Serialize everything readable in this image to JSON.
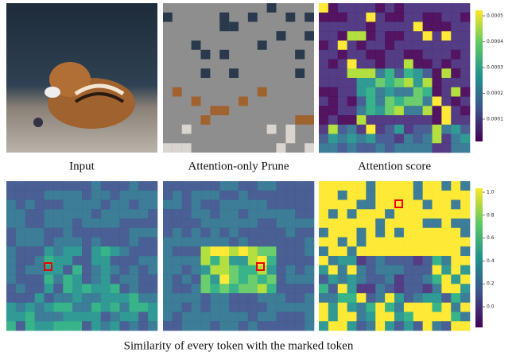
{
  "captions": [
    "Input",
    "Attention-only Prune",
    "Attention score"
  ],
  "bottom_caption": "Similarity of every token with the marked token",
  "colorbars": [
    {
      "ticks": [
        "0.0005",
        "0.0004",
        "0.0003",
        "0.0002",
        "0.0001"
      ]
    },
    {
      "ticks": [
        "1.0",
        "0.8",
        "0.6",
        "0.4",
        "0.2",
        "0.0"
      ]
    }
  ]
}
